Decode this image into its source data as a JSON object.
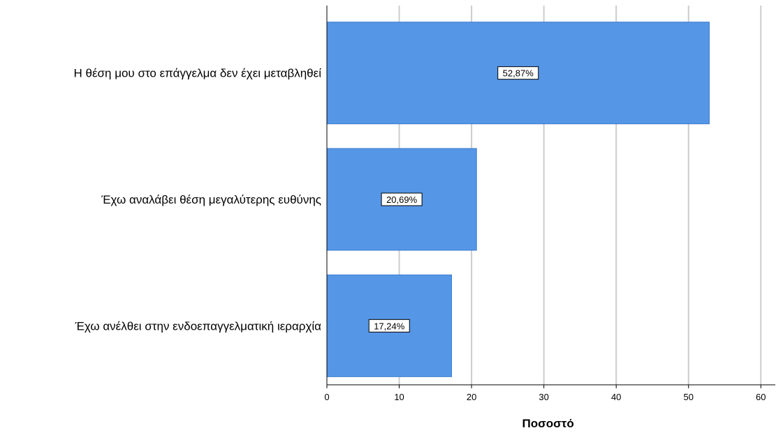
{
  "chart_data": {
    "type": "bar",
    "orientation": "horizontal",
    "title": "",
    "xlabel": "Ποσοστό",
    "ylabel": "",
    "categories": [
      "Η θέση μου στο επάγγελμα δεν έχει μεταβληθεί",
      "Έχω αναλάβει θέση μεγαλύτερης ευθύνης",
      "Έχω ανέλθει στην ενδοεπαγγελματική ιεραρχία"
    ],
    "values": [
      52.87,
      20.69,
      17.24
    ],
    "data_labels": [
      "52,87%",
      "20,69%",
      "17,24%"
    ],
    "xlim": [
      0,
      62
    ],
    "xticks": [
      0,
      10,
      20,
      30,
      40,
      50,
      60
    ],
    "xtick_labels": [
      "0",
      "10",
      "20",
      "30",
      "40",
      "50",
      "60"
    ],
    "grid": "vertical",
    "legend": "none",
    "bar_color": "#5596e6",
    "bar_edge_color": "#3a7bd0",
    "grid_color": "#cccccc",
    "axis_color": "#000000"
  }
}
